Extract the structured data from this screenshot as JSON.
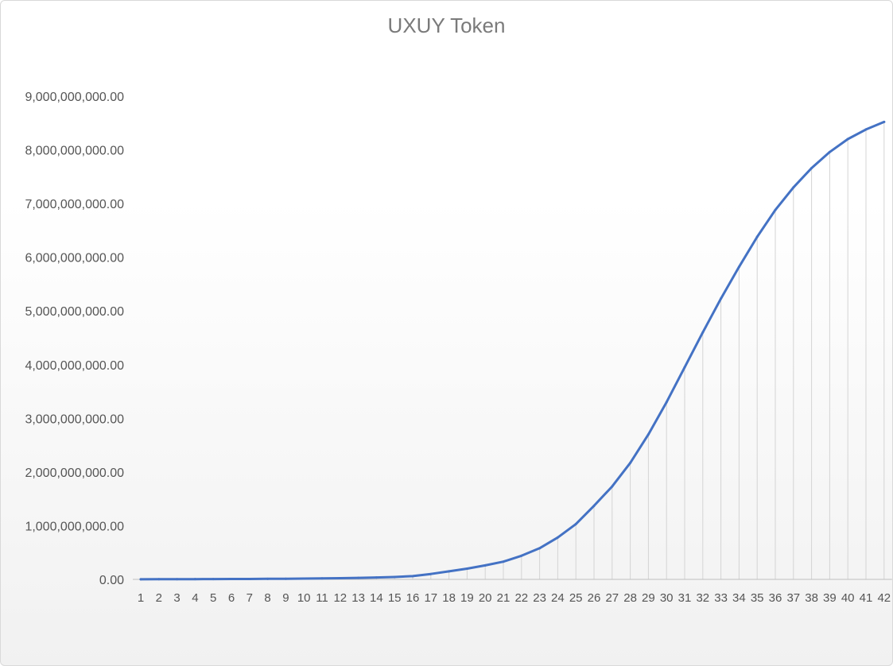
{
  "chart_data": {
    "type": "line",
    "title": "UXUY Token",
    "xlabel": "",
    "ylabel": "",
    "categories": [
      "1",
      "2",
      "3",
      "4",
      "5",
      "6",
      "7",
      "8",
      "9",
      "10",
      "11",
      "12",
      "13",
      "14",
      "15",
      "16",
      "17",
      "18",
      "19",
      "20",
      "21",
      "22",
      "23",
      "24",
      "25",
      "26",
      "27",
      "28",
      "29",
      "30",
      "31",
      "32",
      "33",
      "34",
      "35",
      "36",
      "37",
      "38",
      "39",
      "40",
      "41",
      "42"
    ],
    "ylim": [
      0,
      9000000000
    ],
    "yticks": [
      0,
      1000000000,
      2000000000,
      3000000000,
      4000000000,
      5000000000,
      6000000000,
      7000000000,
      8000000000,
      9000000000
    ],
    "ytick_labels": [
      "0.00",
      "1,000,000,000.00",
      "2,000,000,000.00",
      "3,000,000,000.00",
      "4,000,000,000.00",
      "5,000,000,000.00",
      "6,000,000,000.00",
      "7,000,000,000.00",
      "8,000,000,000.00",
      "9,000,000,000.00"
    ],
    "grid": "vertical drop lines",
    "legend": "none",
    "series": [
      {
        "color": "#4472c4",
        "values": [
          2000000,
          3000000,
          4000000,
          5000000,
          6000000,
          7000000,
          8000000,
          10000000,
          12000000,
          15000000,
          18000000,
          22000000,
          28000000,
          35000000,
          45000000,
          60000000,
          100000000,
          150000000,
          200000000,
          260000000,
          330000000,
          440000000,
          580000000,
          780000000,
          1030000000,
          1370000000,
          1730000000,
          2170000000,
          2700000000,
          3300000000,
          3950000000,
          4600000000,
          5230000000,
          5820000000,
          6380000000,
          6880000000,
          7300000000,
          7660000000,
          7960000000,
          8200000000,
          8380000000,
          8520000000
        ]
      }
    ]
  }
}
